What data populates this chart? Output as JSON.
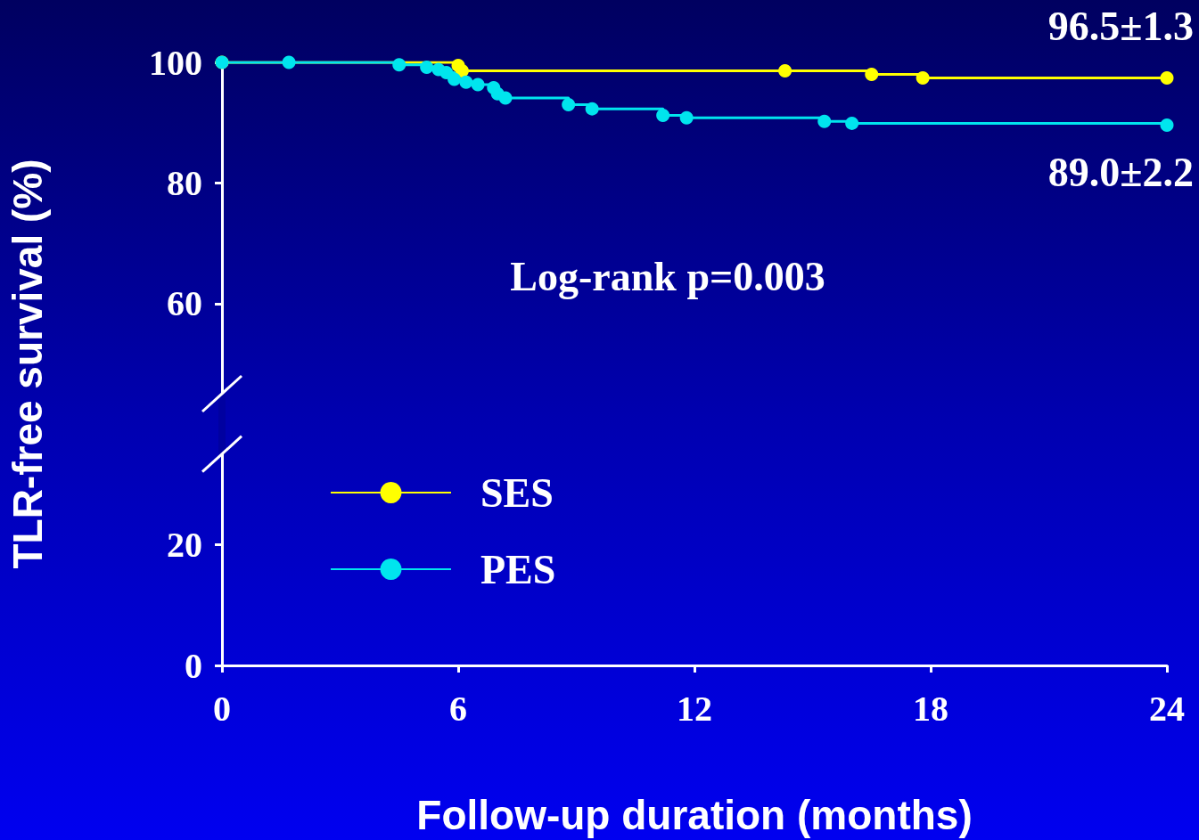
{
  "chart_data": {
    "type": "step",
    "xlabel": "Follow-up duration (months)",
    "ylabel": "TLR-free survival (%)",
    "xlim": [
      0,
      24
    ],
    "xticks": [
      0,
      6,
      12,
      18,
      24
    ],
    "ylim": [
      0,
      100
    ],
    "yticks": [
      0,
      20,
      60,
      80,
      100
    ],
    "grid": false,
    "legend": "bottom left",
    "marker": "circle",
    "line_style": "solid",
    "series": [
      {
        "name": "SES",
        "color": "#ffff00",
        "x": [
          0,
          6,
          6.1,
          14.3,
          16.5,
          17.8,
          24
        ],
        "values": [
          100,
          99.5,
          98.6,
          98.6,
          98.0,
          97.4,
          97.4
        ]
      },
      {
        "name": "PES",
        "color": "#00e5ee",
        "x": [
          0,
          1.7,
          4.5,
          5.2,
          5.5,
          5.7,
          5.9,
          6.2,
          6.5,
          6.9,
          7.0,
          7.2,
          8.8,
          9.4,
          11.2,
          11.8,
          15.3,
          16.0,
          24
        ],
        "values": [
          100,
          100,
          99.6,
          99.2,
          98.8,
          98.3,
          97.2,
          96.7,
          96.3,
          95.8,
          94.8,
          94.1,
          93.0,
          92.3,
          91.2,
          90.8,
          90.2,
          89.9,
          89.6
        ]
      }
    ],
    "annotations": [
      {
        "text": "96.5±1.3",
        "x": 24,
        "y": 97.4
      },
      {
        "text": "89.0±2.2",
        "x": 24,
        "y": 89.6
      },
      "Log-rank p=0.003"
    ]
  }
}
